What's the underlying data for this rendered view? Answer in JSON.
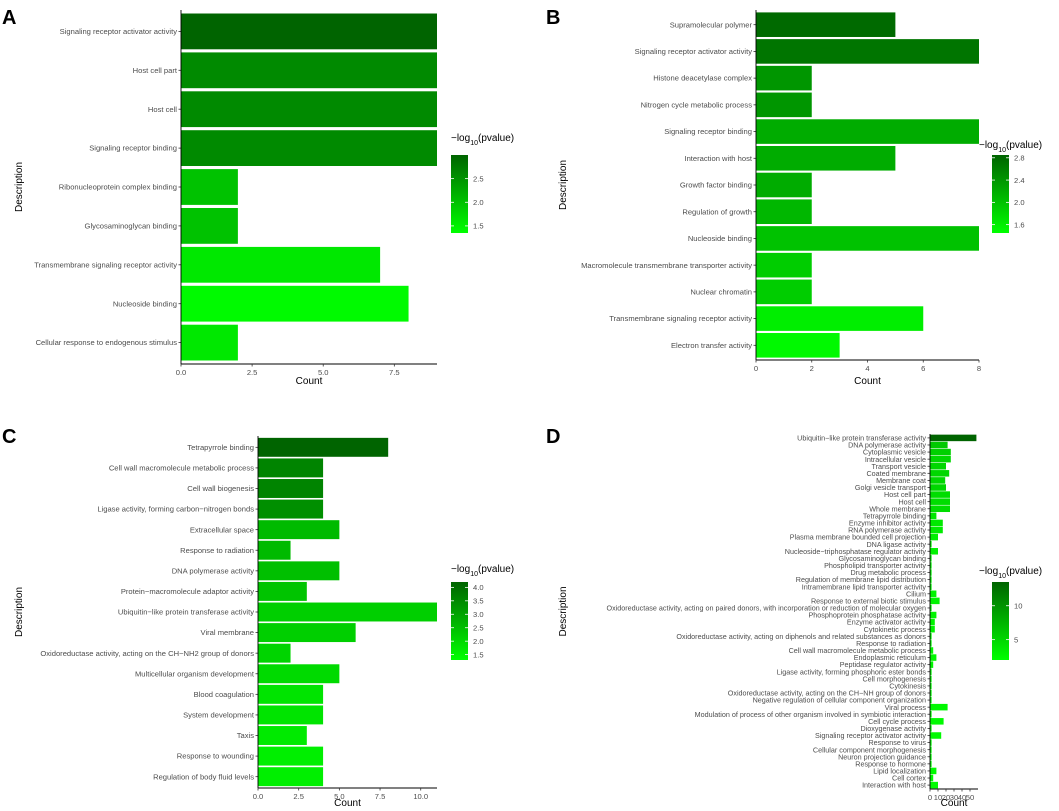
{
  "chart_data": [
    {
      "panel": "A",
      "type": "bar",
      "orientation": "horizontal",
      "xlabel": "Count",
      "ylabel": "Description",
      "xlim": [
        0,
        9
      ],
      "xticks": [
        0,
        2.5,
        5,
        7.5
      ],
      "xtick_labels": [
        "0.0",
        "2.5",
        "5.0",
        "7.5"
      ],
      "categories": [
        "Signaling receptor activator activity",
        "Host cell part",
        "Host cell",
        "Signaling receptor binding",
        "Ribonucleoprotein complex binding",
        "Glycosaminoglycan binding",
        "Transmembrane signaling receptor activity",
        "Nucleoside binding",
        "Cellular response to endogenous stimulus"
      ],
      "values": [
        9,
        9,
        9,
        9,
        2,
        2,
        7,
        8,
        2
      ],
      "neglog10p": [
        3.0,
        2.6,
        2.6,
        2.6,
        2.0,
        2.0,
        1.6,
        1.4,
        1.6
      ],
      "legend": {
        "title_prefix": "−log",
        "title_sub": "10",
        "title_suffix": "(pvalue)",
        "range": [
          1.35,
          3.0
        ],
        "ticks": [
          1.5,
          2.0,
          2.5
        ],
        "tick_labels": [
          "1.5",
          "2.0",
          "2.5"
        ]
      }
    },
    {
      "panel": "B",
      "type": "bar",
      "orientation": "horizontal",
      "xlabel": "Count",
      "ylabel": "Description",
      "xlim": [
        0,
        8
      ],
      "xticks": [
        0,
        2,
        4,
        6,
        8
      ],
      "xtick_labels": [
        "0",
        "2",
        "4",
        "6",
        "8"
      ],
      "categories": [
        "Supramolecular polymer",
        "Signaling receptor activator activity",
        "Histone deacetylase complex",
        "Nitrogen cycle metabolic process",
        "Signaling receptor binding",
        "Interaction with host",
        "Growth factor binding",
        "Regulation of growth",
        "Nucleoside binding",
        "Macromolecule transmembrane transporter activity",
        "Nuclear chromatin",
        "Transmembrane signaling receptor activity",
        "Electron transfer activity"
      ],
      "values": [
        5,
        8,
        2,
        2,
        8,
        5,
        2,
        2,
        8,
        2,
        2,
        6,
        3
      ],
      "neglog10p": [
        2.8,
        2.7,
        2.4,
        2.4,
        2.2,
        2.2,
        2.2,
        2.1,
        2.0,
        1.9,
        1.9,
        1.6,
        1.5
      ],
      "legend": {
        "title_prefix": "−log",
        "title_sub": "10",
        "title_suffix": "(pvalue)",
        "range": [
          1.45,
          2.85
        ],
        "ticks": [
          1.6,
          2.0,
          2.4,
          2.8
        ],
        "tick_labels": [
          "1.6",
          "2.0",
          "2.4",
          "2.8"
        ]
      }
    },
    {
      "panel": "C",
      "type": "bar",
      "orientation": "horizontal",
      "xlabel": "Count",
      "ylabel": "Description",
      "xlim": [
        0,
        11
      ],
      "xticks": [
        0,
        2.5,
        5,
        7.5,
        10
      ],
      "xtick_labels": [
        "0.0",
        "2.5",
        "5.0",
        "7.5",
        "10.0"
      ],
      "categories": [
        "Tetrapyrrole binding",
        "Cell wall macromolecule metabolic process",
        "Cell wall biogenesis",
        "Ligase activity, forming carbon−nitrogen bonds",
        "Extracellular space",
        "Response to radiation",
        "DNA polymerase activity",
        "Protein−macromolecule adaptor activity",
        "Ubiquitin−like protein transferase activity",
        "Viral membrane",
        "Oxidoreductase activity, acting on the CH−NH2 group of donors",
        "Multicellular organism development",
        "Blood coagulation",
        "System development",
        "Taxis",
        "Response to wounding",
        "Regulation of body fluid levels"
      ],
      "values": [
        8,
        4,
        4,
        4,
        5,
        2,
        5,
        3,
        11,
        6,
        2,
        5,
        4,
        4,
        3,
        4,
        4
      ],
      "neglog10p": [
        4.2,
        3.6,
        3.6,
        3.4,
        2.6,
        2.6,
        2.5,
        2.4,
        2.2,
        2.2,
        2.1,
        2.0,
        1.8,
        1.8,
        1.7,
        1.6,
        1.6
      ],
      "legend": {
        "title_prefix": "−log",
        "title_sub": "10",
        "title_suffix": "(pvalue)",
        "range": [
          1.3,
          4.2
        ],
        "ticks": [
          1.5,
          2.0,
          2.5,
          3.0,
          3.5,
          4.0
        ],
        "tick_labels": [
          "1.5",
          "2.0",
          "2.5",
          "3.0",
          "3.5",
          "4.0"
        ]
      }
    },
    {
      "panel": "D",
      "type": "bar",
      "orientation": "horizontal",
      "xlabel": "Count",
      "ylabel": "Description",
      "xlim": [
        0,
        60
      ],
      "xticks": [
        0,
        10,
        20,
        30,
        40,
        50
      ],
      "xtick_labels": [
        "0",
        "10",
        "20",
        "30",
        "40",
        "50"
      ],
      "categories": [
        "Ubiquitin−like protein transferase activity",
        "DNA polymerase activity",
        "Cytoplasmic vesicle",
        "Intracellular vesicle",
        "Transport vesicle",
        "Coated membrane",
        "Membrane coat",
        "Golgi vesicle transport",
        "Host cell part",
        "Host cell",
        "Whole membrane",
        "Tetrapyrrole binding",
        "Enzyme inhibitor activity",
        "RNA polymerase activity",
        "Plasma membrane bounded cell projection",
        "DNA ligase activity",
        "Nucleoside−triphosphatase regulator activity",
        "Glycosaminoglycan binding",
        "Phospholipid transporter activity",
        "Drug metabolic process",
        "Regulation of membrane lipid distribution",
        "Intramembrane lipid transporter activity",
        "Cilium",
        "Response to external biotic stimulus",
        "Oxidoreductase activity, acting on paired donors, with incorporation or reduction of molecular oxygen",
        "Phosphoprotein phosphatase activity",
        "Enzyme activator activity",
        "Cytokinetic process",
        "Oxidoreductase activity, acting on diphenols and related substances as donors",
        "Response to radiation",
        "Cell wall macromolecule metabolic process",
        "Endoplasmic reticulum",
        "Peptidase regulator activity",
        "Ligase activity, forming phosphoric ester bonds",
        "Cell morphogenesis",
        "Cytokinesis",
        "Oxidoreductase activity, acting on the CH−NH group of donors",
        "Negative regulation of cellular component organization",
        "Viral process",
        "Modulation of process of other organism involved in symbiotic interaction",
        "Cell cycle process",
        "Dioxygenase activity",
        "Signaling receptor activator activity",
        "Response to virus",
        "Cellular component morphogenesis",
        "Neuron projection guidance",
        "Response to hormone",
        "Lipid localization",
        "Cell cortex",
        "Interaction with host"
      ],
      "values": [
        58,
        22,
        26,
        26,
        20,
        24,
        19,
        20,
        25,
        25,
        25,
        8,
        16,
        16,
        10,
        2,
        10,
        2,
        2,
        2,
        2,
        2,
        8,
        12,
        2,
        8,
        6,
        6,
        2,
        2,
        4,
        8,
        4,
        2,
        2,
        2,
        2,
        2,
        22,
        2,
        17,
        2,
        14,
        2,
        2,
        2,
        2,
        8,
        4,
        10
      ],
      "neglog10p": [
        13.5,
        6.0,
        5.5,
        5.0,
        5.0,
        5.0,
        5.0,
        5.0,
        4.5,
        4.5,
        4.5,
        3.8,
        3.6,
        3.5,
        3.2,
        3.0,
        3.0,
        3.0,
        3.0,
        3.0,
        3.0,
        3.0,
        2.8,
        2.8,
        2.8,
        2.8,
        2.8,
        2.8,
        2.7,
        2.7,
        2.7,
        2.6,
        2.6,
        2.6,
        2.6,
        2.5,
        2.5,
        2.5,
        2.5,
        2.5,
        2.4,
        2.4,
        2.4,
        2.4,
        2.3,
        2.3,
        2.3,
        2.2,
        2.2,
        2.2
      ],
      "legend": {
        "title_prefix": "−log",
        "title_sub": "10",
        "title_suffix": "(pvalue)",
        "range": [
          2.0,
          13.5
        ],
        "ticks": [
          5,
          10
        ],
        "tick_labels": [
          "5",
          "10"
        ]
      }
    }
  ]
}
